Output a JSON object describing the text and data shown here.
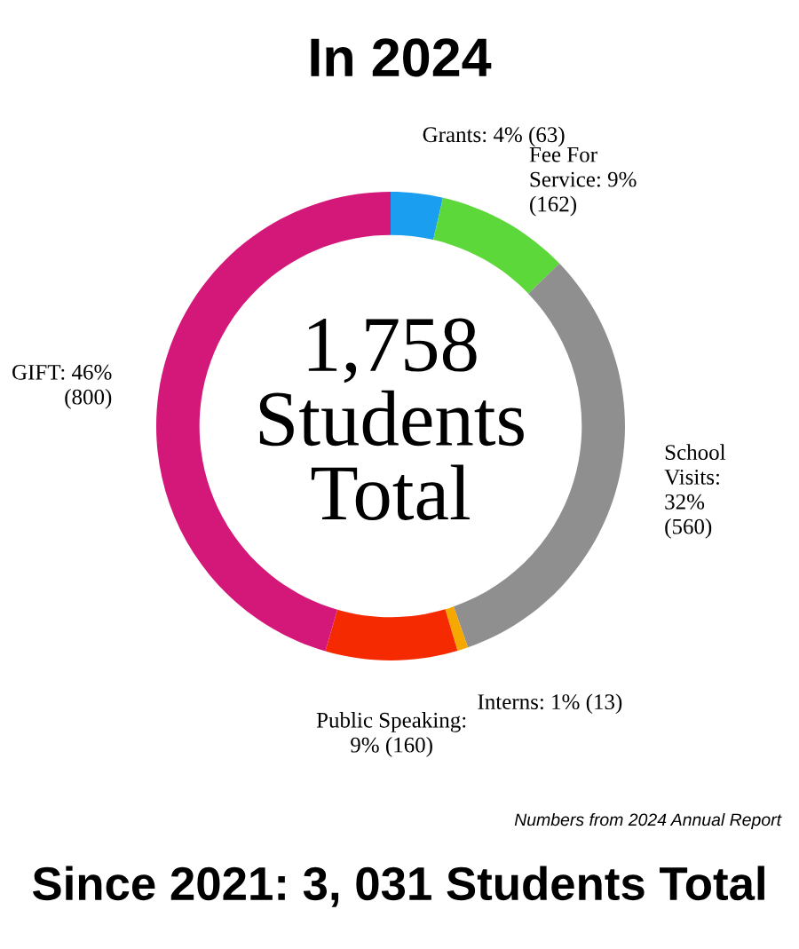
{
  "chart_data": {
    "type": "donut",
    "title": "In 2024",
    "categories": [
      "Grants: 4% (63)",
      "Fee For\nService: 9%\n(162)",
      "School\nVisits:\n32%\n(560)",
      "Interns: 1% (13)",
      "Public Speaking:\n9% (160)",
      "GIFT: 46%\n(800)"
    ],
    "values": [
      63,
      162,
      560,
      13,
      160,
      800
    ],
    "colors": [
      "#1a9ff0",
      "#5dd83b",
      "#8f8f8f",
      "#f5a800",
      "#f52a00",
      "#d4187a"
    ],
    "annotations": [
      "1,758\nStudents\nTotal",
      "Numbers from 2024 Annual Report",
      "Since 2021: 3, 031 Students Total"
    ],
    "legend": false
  }
}
